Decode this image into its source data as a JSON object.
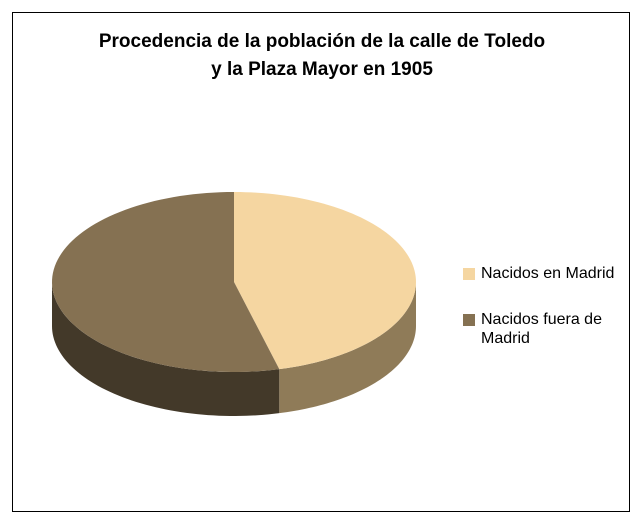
{
  "chart_data": {
    "type": "pie3d",
    "title": "Procedencia de la población de la calle de Toledo y la Plaza Mayor en 1905",
    "categories": [
      "Nacidos en Madrid",
      "Nacidos fuera de Madrid"
    ],
    "values": [
      46,
      54
    ],
    "colors": [
      "#f5d6a1",
      "#857152"
    ],
    "side_colors": [
      "#8f7b58",
      "#433929"
    ],
    "legend": "right"
  }
}
